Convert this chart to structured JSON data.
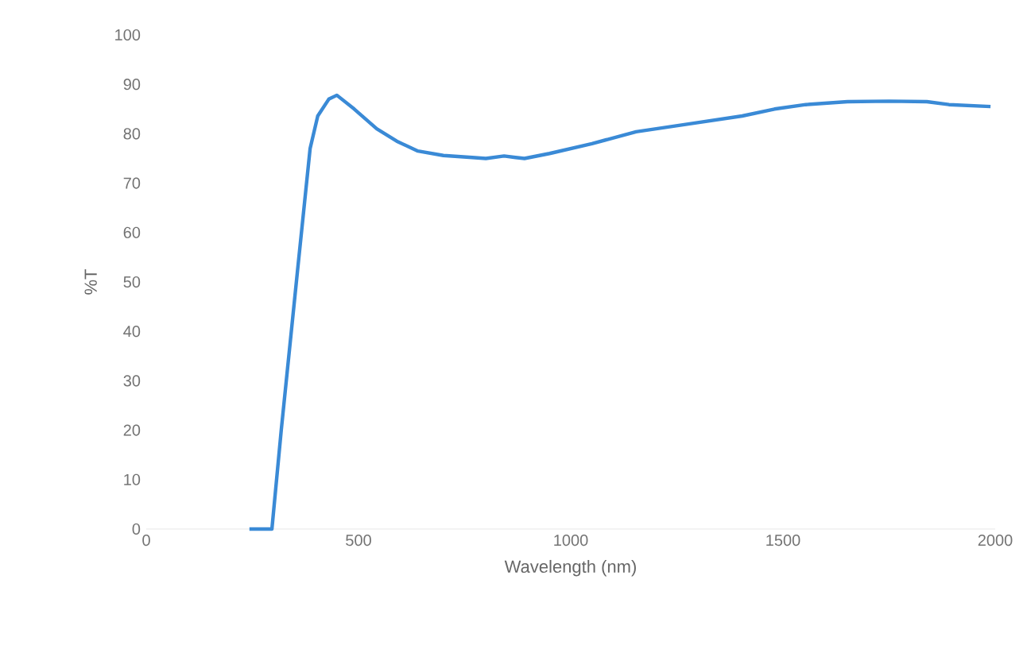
{
  "chart_data": {
    "type": "line",
    "xlabel": "Wavelength (nm)",
    "ylabel": "%T",
    "xlim": [
      0,
      2000
    ],
    "xticks": [
      0,
      500,
      1000,
      1500,
      2000
    ],
    "ylim": [
      0,
      100
    ],
    "yticks": [
      0,
      10,
      20,
      30,
      40,
      50,
      60,
      70,
      80,
      90,
      100
    ],
    "series": [
      {
        "color": "#3a8ad6",
        "x": [
          243,
          296,
          318,
          356,
          386,
          404,
          430,
          449,
          490,
          543,
          590,
          640,
          700,
          768,
          800,
          843,
          870,
          891,
          950,
          1050,
          1154,
          1280,
          1404,
          1480,
          1554,
          1652,
          1750,
          1839,
          1891,
          1989
        ],
        "values": [
          0,
          0,
          20,
          52,
          77,
          83.6,
          87,
          87.8,
          85,
          81,
          78.5,
          76.5,
          75.6,
          75.2,
          75,
          75.5,
          75.2,
          75,
          76,
          78,
          80.4,
          82,
          83.6,
          85,
          85.9,
          86.5,
          86.6,
          86.5,
          85.9,
          85.5
        ]
      }
    ],
    "grid": false,
    "line_style": "solid",
    "marker": "none"
  }
}
